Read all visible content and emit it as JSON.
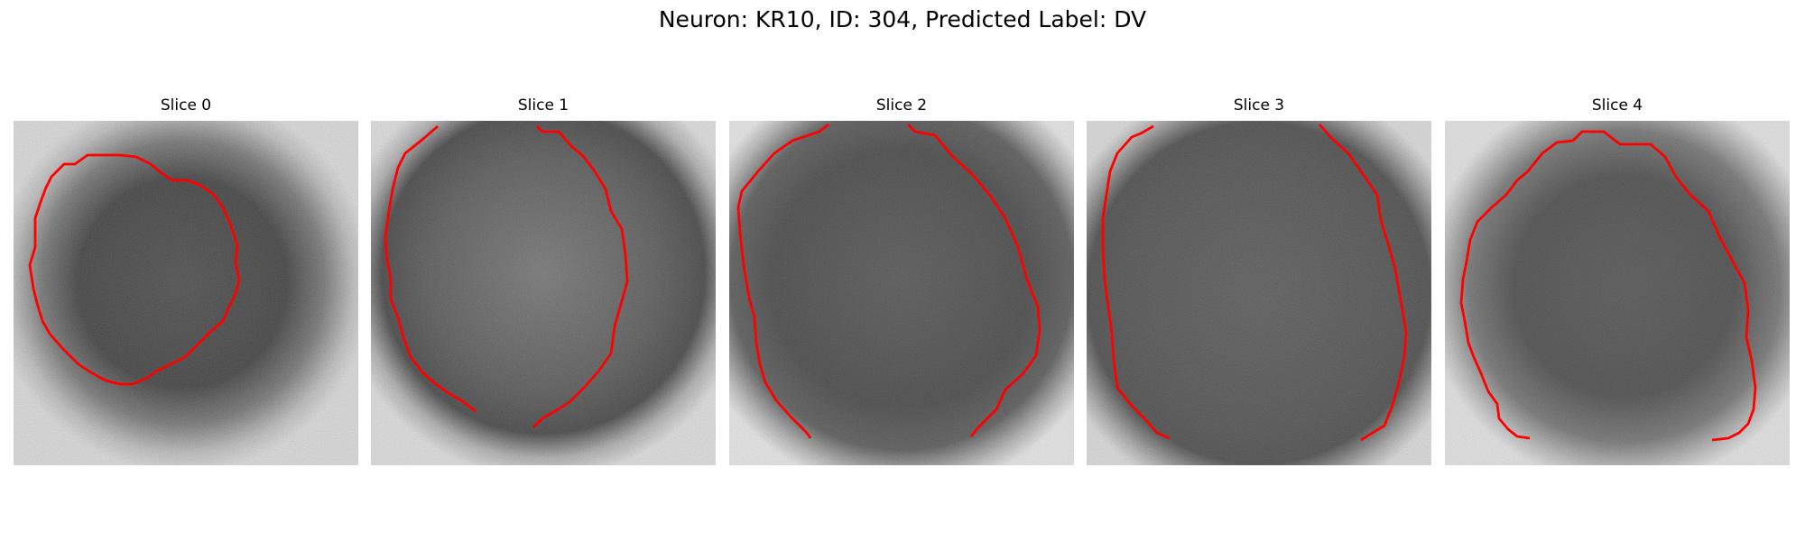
{
  "figure": {
    "title": "Neuron: KR10, ID: 304, Predicted Label: DV"
  },
  "panels": [
    {
      "title": "Slice 0"
    },
    {
      "title": "Slice 1"
    },
    {
      "title": "Slice 2"
    },
    {
      "title": "Slice 3"
    },
    {
      "title": "Slice 4"
    }
  ],
  "colors": {
    "contour": "#ff0000",
    "background": "#ffffff"
  }
}
